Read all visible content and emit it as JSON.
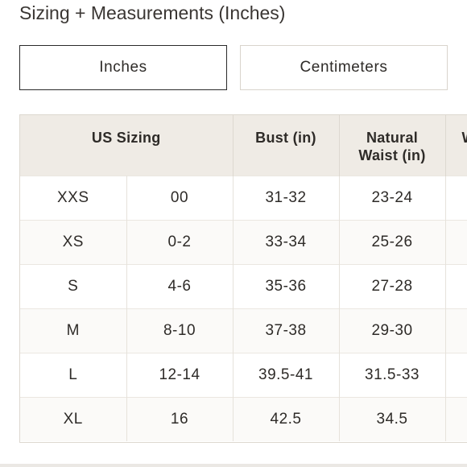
{
  "title": "Sizing + Measurements (Inches)",
  "unit_toggle": {
    "active_label": "Inches",
    "inactive_label": "Centimeters"
  },
  "table": {
    "headers": {
      "us_sizing": "US Sizing",
      "bust": "Bust (in)",
      "waist_line1": "Natural",
      "waist_line2": "Waist (in)",
      "next_col_partial": "W"
    },
    "rows": [
      {
        "size": "XXS",
        "us": "00",
        "bust": "31-32",
        "waist": "23-24"
      },
      {
        "size": "XS",
        "us": "0-2",
        "bust": "33-34",
        "waist": "25-26"
      },
      {
        "size": "S",
        "us": "4-6",
        "bust": "35-36",
        "waist": "27-28"
      },
      {
        "size": "M",
        "us": "8-10",
        "bust": "37-38",
        "waist": "29-30"
      },
      {
        "size": "L",
        "us": "12-14",
        "bust": "39.5-41",
        "waist": "31.5-33"
      },
      {
        "size": "XL",
        "us": "16",
        "bust": "42.5",
        "waist": "34.5"
      }
    ]
  }
}
